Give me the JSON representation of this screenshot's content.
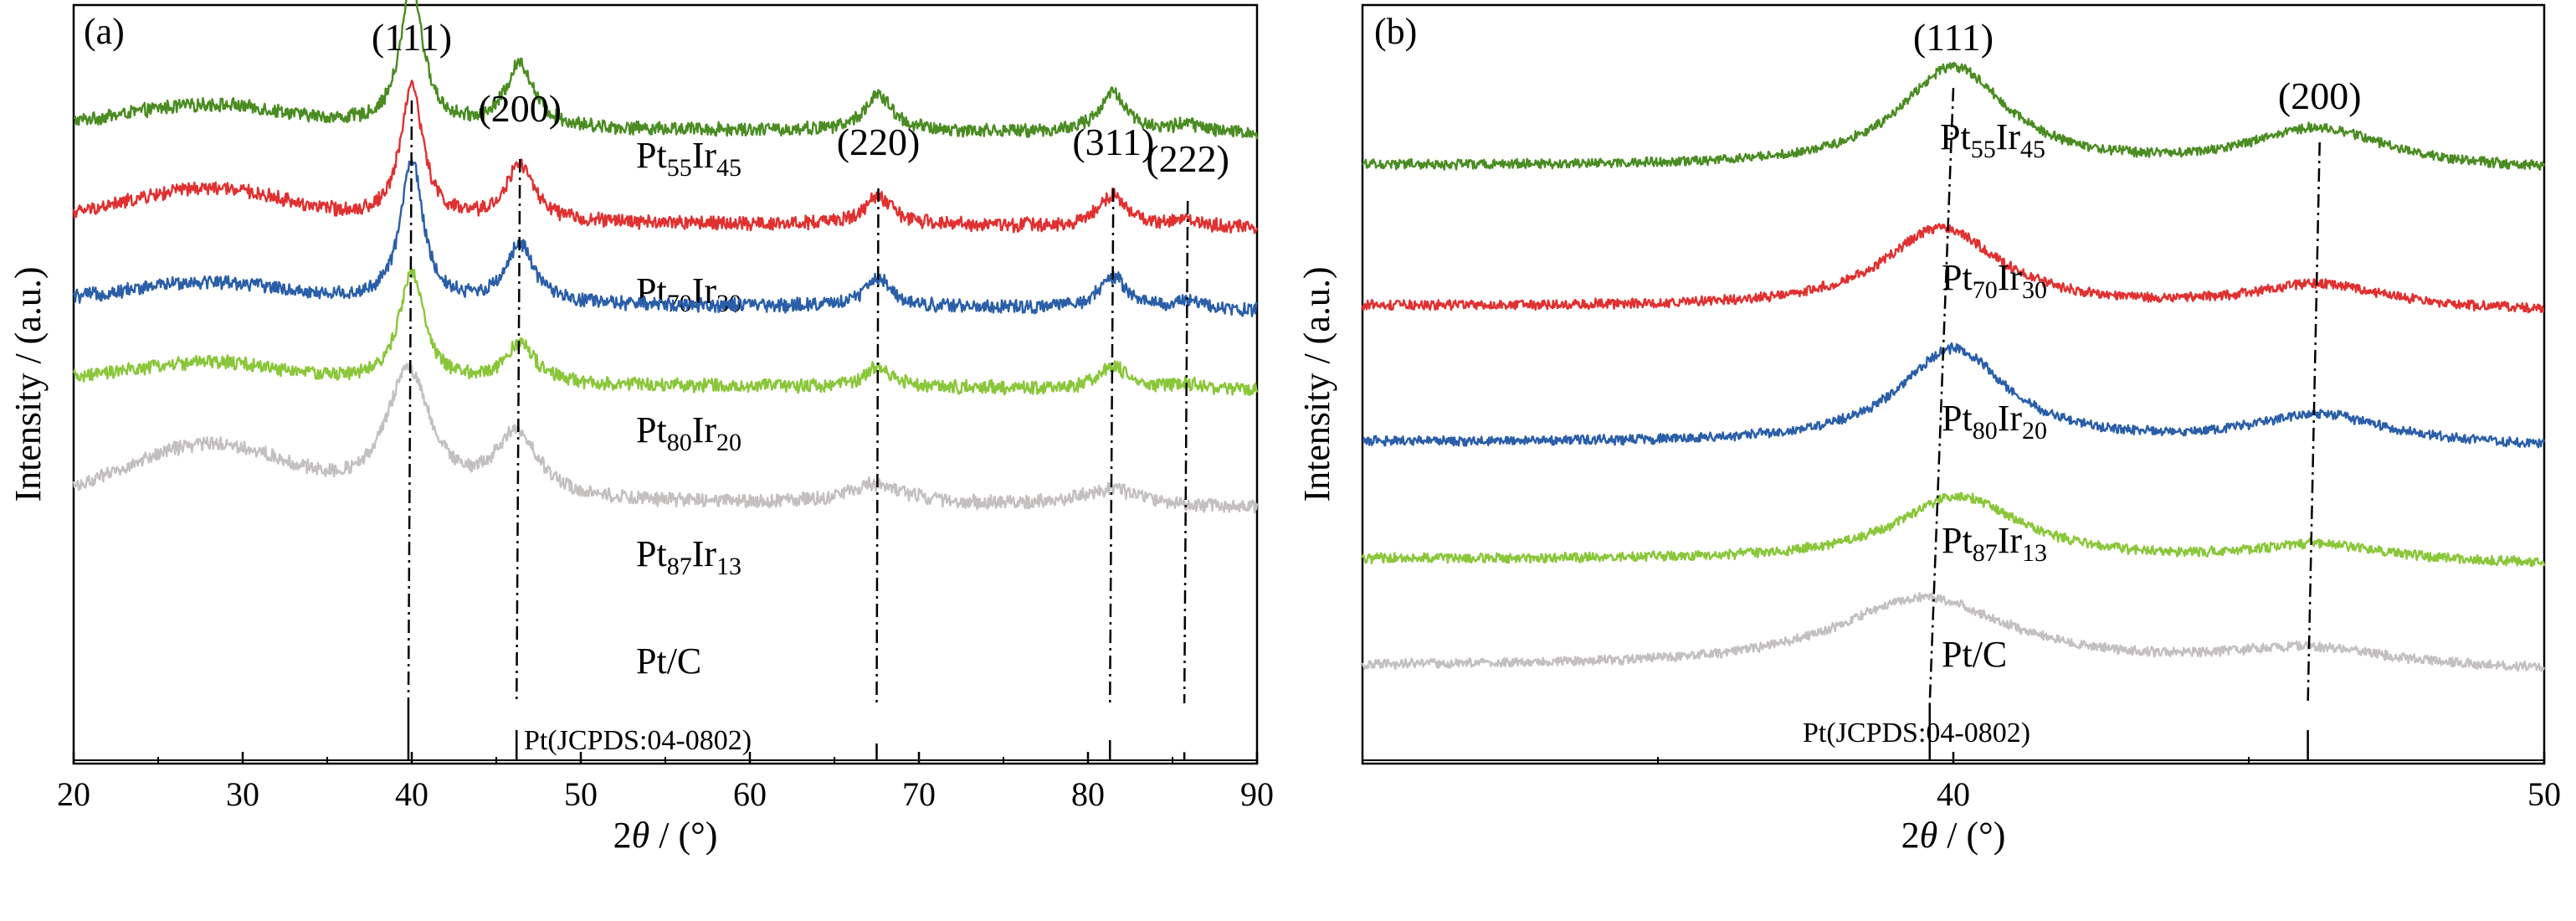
{
  "chart_data": [
    {
      "type": "line",
      "panel_label": "(a)",
      "xlabel": "2θ / (°)",
      "ylabel": "Intensity / (a.u.)",
      "xlim": [
        20,
        90
      ],
      "xticks": [
        20,
        30,
        40,
        50,
        60,
        70,
        80,
        90
      ],
      "reference_label": "Pt(JCPDS:04-0802)",
      "reference_peaks": [
        {
          "x": 39.8,
          "h": 0.85
        },
        {
          "x": 46.2,
          "h": 0.45
        },
        {
          "x": 67.5,
          "h": 0.25
        },
        {
          "x": 81.3,
          "h": 0.3
        },
        {
          "x": 85.7,
          "h": 0.12
        }
      ],
      "peak_labels": [
        {
          "text": "(111)",
          "x": 40.0
        },
        {
          "text": "(200)",
          "x": 46.4
        },
        {
          "text": "(220)",
          "x": 67.6
        },
        {
          "text": "(311)",
          "x": 81.5
        },
        {
          "text": "(222)",
          "x": 85.9
        }
      ],
      "series": [
        {
          "label": {
            "base": "Pt",
            "sub1": "55",
            "mid": "Ir",
            "sub2": "45"
          },
          "color": "#4a8c22",
          "peaks": [
            {
              "x": 40.0,
              "h": 1.0,
              "w": 0.8
            },
            {
              "x": 46.4,
              "h": 0.45,
              "w": 1.0
            },
            {
              "x": 67.6,
              "h": 0.25,
              "w": 1.0
            },
            {
              "x": 81.5,
              "h": 0.28,
              "w": 1.0
            },
            {
              "x": 85.9,
              "h": 0.06,
              "w": 1.0
            }
          ],
          "hump_h": 0.15
        },
        {
          "label": {
            "base": "Pt",
            "sub1": "70",
            "mid": "Ir",
            "sub2": "30"
          },
          "color": "#e03030",
          "peaks": [
            {
              "x": 40.0,
              "h": 0.95,
              "w": 0.8
            },
            {
              "x": 46.4,
              "h": 0.4,
              "w": 1.0
            },
            {
              "x": 67.6,
              "h": 0.2,
              "w": 1.0
            },
            {
              "x": 81.5,
              "h": 0.22,
              "w": 1.0
            },
            {
              "x": 85.9,
              "h": 0.05,
              "w": 1.0
            }
          ],
          "hump_h": 0.22
        },
        {
          "label": {
            "base": "Pt",
            "sub1": "80",
            "mid": "Ir",
            "sub2": "20"
          },
          "color": "#2a5ea8",
          "peaks": [
            {
              "x": 40.0,
              "h": 1.0,
              "w": 0.8
            },
            {
              "x": 46.4,
              "h": 0.42,
              "w": 1.0
            },
            {
              "x": 67.6,
              "h": 0.2,
              "w": 1.0
            },
            {
              "x": 81.5,
              "h": 0.22,
              "w": 1.0
            },
            {
              "x": 85.9,
              "h": 0.05,
              "w": 1.0
            }
          ],
          "hump_h": 0.14
        },
        {
          "label": {
            "base": "Pt",
            "sub1": "87",
            "mid": "Ir",
            "sub2": "13"
          },
          "color": "#8ac63a",
          "peaks": [
            {
              "x": 40.0,
              "h": 0.78,
              "w": 0.9
            },
            {
              "x": 46.4,
              "h": 0.28,
              "w": 1.1
            },
            {
              "x": 67.6,
              "h": 0.14,
              "w": 1.0
            },
            {
              "x": 81.5,
              "h": 0.16,
              "w": 1.0
            },
            {
              "x": 85.9,
              "h": 0.04,
              "w": 1.0
            }
          ],
          "hump_h": 0.14
        },
        {
          "label": {
            "base": "Pt/C",
            "sub1": "",
            "mid": "",
            "sub2": ""
          },
          "color": "#c4c0c0",
          "peaks": [
            {
              "x": 39.8,
              "h": 0.9,
              "w": 1.6
            },
            {
              "x": 46.2,
              "h": 0.45,
              "w": 1.6
            },
            {
              "x": 67.5,
              "h": 0.14,
              "w": 2.0
            },
            {
              "x": 81.3,
              "h": 0.12,
              "w": 2.0
            }
          ],
          "hump_h": 0.38
        }
      ]
    },
    {
      "type": "line",
      "panel_label": "(b)",
      "xlabel": "2θ / (°)",
      "ylabel": "Intensity / (a.u.)",
      "xlim": [
        30,
        50
      ],
      "xticks": [
        40,
        50
      ],
      "reference_label": "Pt(JCPDS:04-0802)",
      "reference_peaks": [
        {
          "x": 39.6,
          "h": 0.85
        },
        {
          "x": 46.0,
          "h": 0.45
        }
      ],
      "peak_labels": [
        {
          "text": "(111)",
          "x": 40.0
        },
        {
          "text": "(200)",
          "x": 46.2
        }
      ],
      "series": [
        {
          "label": {
            "base": "Pt",
            "sub1": "55",
            "mid": "Ir",
            "sub2": "45"
          },
          "color": "#4a8c22",
          "peaks": [
            {
              "x": 40.0,
              "h": 1.0,
              "w": 1.1
            },
            {
              "x": 46.2,
              "h": 0.4,
              "w": 1.4
            }
          ]
        },
        {
          "label": {
            "base": "Pt",
            "sub1": "70",
            "mid": "Ir",
            "sub2": "30"
          },
          "color": "#e03030",
          "peaks": [
            {
              "x": 39.8,
              "h": 0.8,
              "w": 1.2
            },
            {
              "x": 46.2,
              "h": 0.25,
              "w": 1.4
            }
          ]
        },
        {
          "label": {
            "base": "Pt",
            "sub1": "80",
            "mid": "Ir",
            "sub2": "20"
          },
          "color": "#2a5ea8",
          "peaks": [
            {
              "x": 40.0,
              "h": 0.95,
              "w": 1.1
            },
            {
              "x": 46.2,
              "h": 0.3,
              "w": 1.4
            }
          ]
        },
        {
          "label": {
            "base": "Pt",
            "sub1": "87",
            "mid": "Ir",
            "sub2": "13"
          },
          "color": "#8ac63a",
          "peaks": [
            {
              "x": 40.1,
              "h": 0.65,
              "w": 1.3
            },
            {
              "x": 46.2,
              "h": 0.18,
              "w": 1.4
            }
          ]
        },
        {
          "label": {
            "base": "Pt/C",
            "sub1": "",
            "mid": "",
            "sub2": ""
          },
          "color": "#c4c0c0",
          "peaks": [
            {
              "x": 39.5,
              "h": 0.7,
              "w": 1.8
            },
            {
              "x": 46.0,
              "h": 0.2,
              "w": 1.8
            }
          ]
        }
      ]
    }
  ]
}
